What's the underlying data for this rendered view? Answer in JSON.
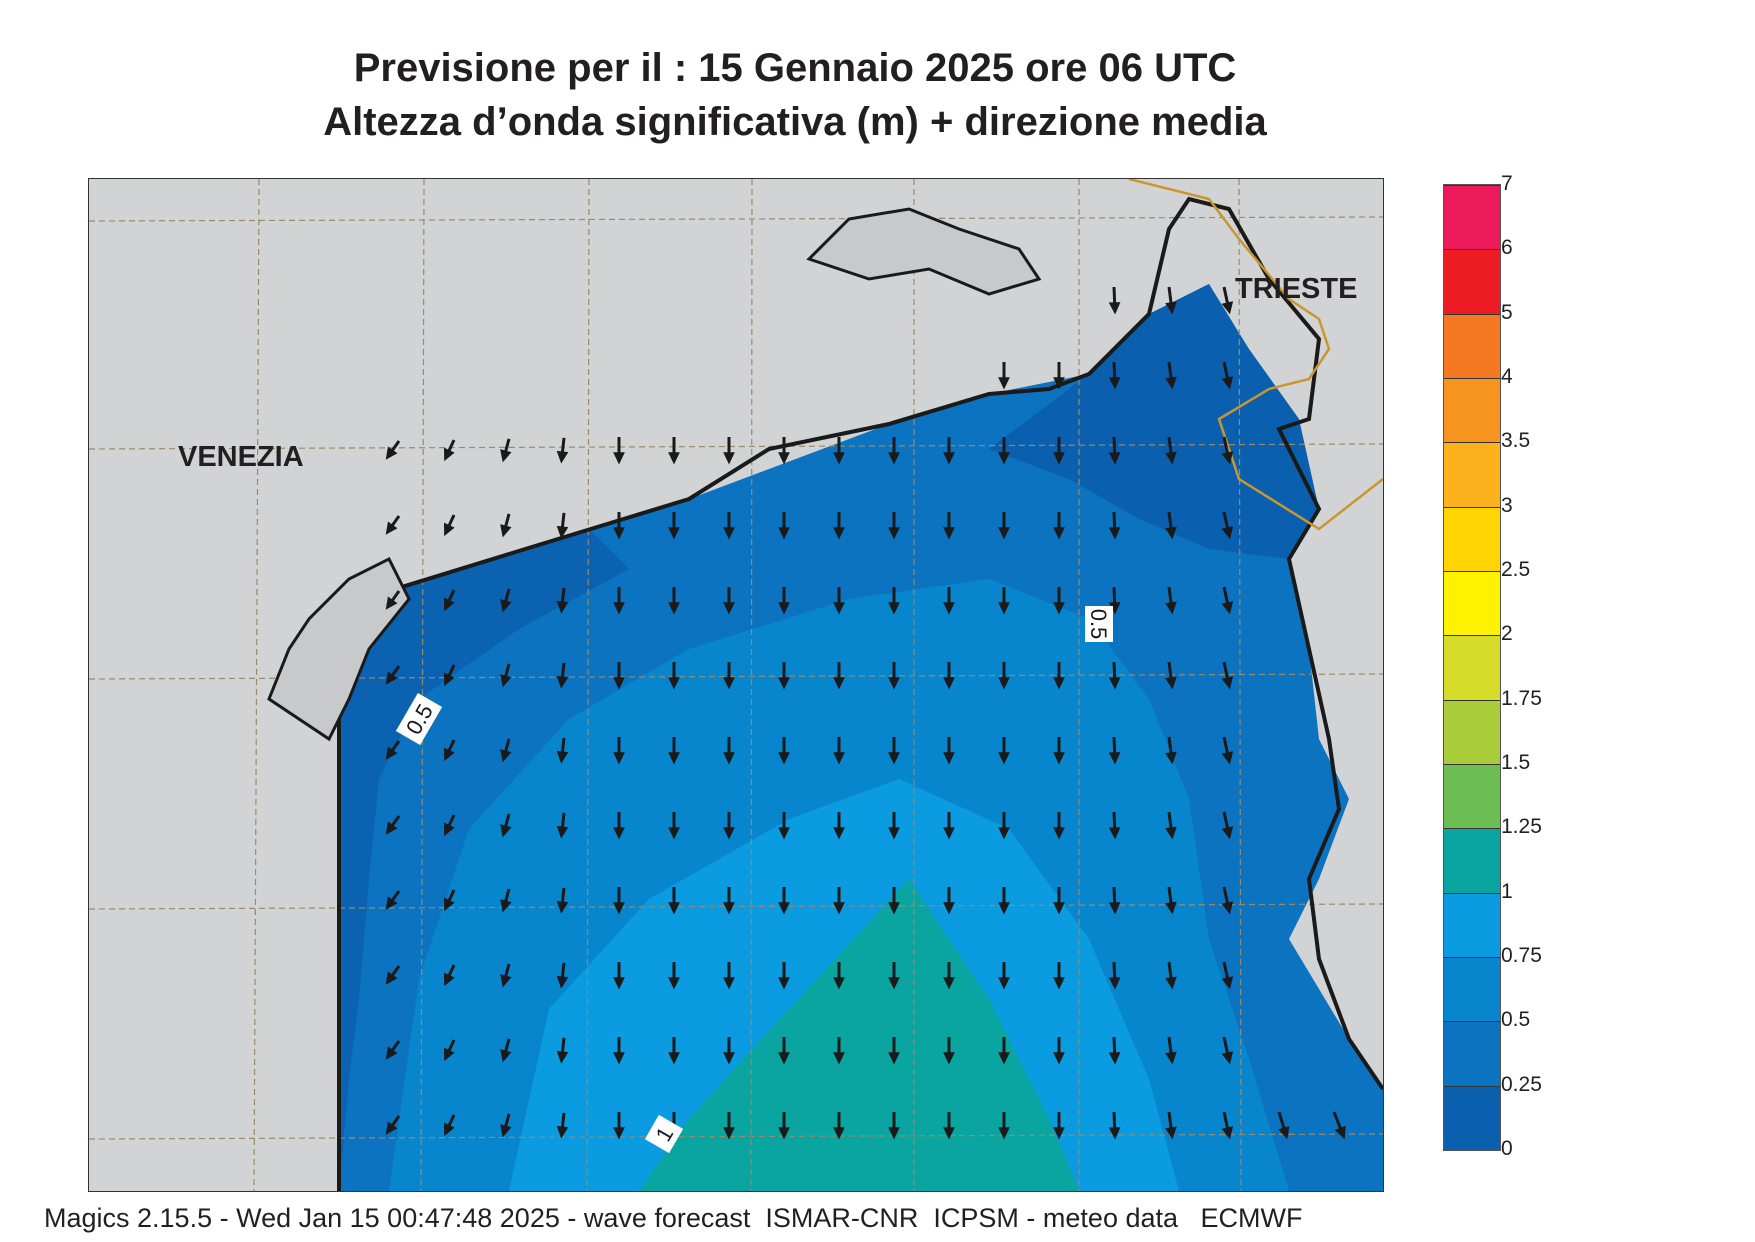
{
  "header": {
    "title_line1": "Previsione per il  :  15  Gennaio  2025   ore 06 UTC",
    "title_line2": "Altezza d’onda significativa (m) + direzione media"
  },
  "map": {
    "cities": {
      "venezia": "VENEZIA",
      "trieste": "TRIESTE"
    },
    "contour_labels": [
      "0.5",
      "0.5",
      "1"
    ],
    "colors": {
      "land": "#d2d3d5",
      "coastline": "#1a1a1a",
      "border": "#c9962f",
      "arrow": "#1a1a1a"
    }
  },
  "legend": {
    "labels": [
      "0",
      "0.25",
      "0.5",
      "0.75",
      "1",
      "1.25",
      "1.5",
      "1.75",
      "2",
      "2.5",
      "3",
      "3.5",
      "4",
      "5",
      "6",
      "7"
    ],
    "colors": [
      "#0a5fae",
      "#0c73c1",
      "#0886cd",
      "#0a9be0",
      "#0aa5a0",
      "#6cbd52",
      "#a8cc3a",
      "#d6dd28",
      "#fef200",
      "#ffd400",
      "#fbb21d",
      "#f79420",
      "#f47922",
      "#ed1c24",
      "#ec1a5b"
    ]
  },
  "footer": {
    "text": "Magics 2.15.5 - Wed Jan 15 00:47:48 2025 - wave forecast  ISMAR-CNR  ICPSM - meteo data   ECMWF"
  }
}
